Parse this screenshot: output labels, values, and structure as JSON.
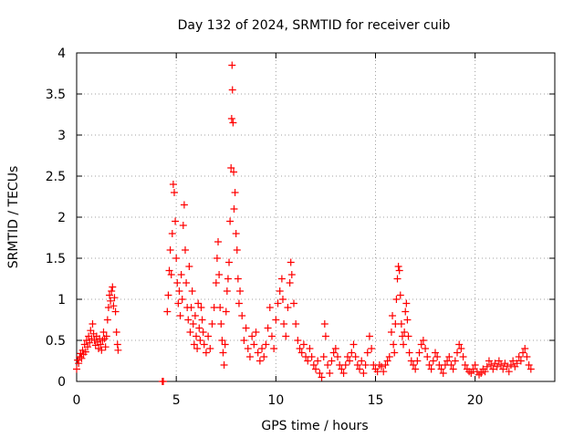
{
  "chart_data": {
    "type": "scatter",
    "title": "Day 132 of 2024, SRMTID for receiver cuib",
    "xlabel": "GPS time / hours",
    "ylabel": "SRMTID / TECUs",
    "xlim": [
      0,
      24
    ],
    "ylim": [
      0,
      4
    ],
    "xticks": [
      0,
      5,
      10,
      15,
      20
    ],
    "yticks": [
      0,
      0.5,
      1,
      1.5,
      2,
      2.5,
      3,
      3.5,
      4
    ],
    "xtick_labels": [
      "0",
      "5",
      "10",
      "15",
      "20"
    ],
    "ytick_labels": [
      "0",
      "0.5",
      "1",
      "1.5",
      "2",
      "2.5",
      "3",
      "3.5",
      "4"
    ],
    "grid": true,
    "marker": "plus",
    "series": [
      {
        "name": "SRMTID",
        "color": "#ff0000",
        "points": [
          [
            0.0,
            0.15
          ],
          [
            0.05,
            0.26
          ],
          [
            0.1,
            0.22
          ],
          [
            0.15,
            0.3
          ],
          [
            0.2,
            0.34
          ],
          [
            0.25,
            0.28
          ],
          [
            0.3,
            0.38
          ],
          [
            0.35,
            0.33
          ],
          [
            0.4,
            0.45
          ],
          [
            0.45,
            0.36
          ],
          [
            0.5,
            0.5
          ],
          [
            0.55,
            0.42
          ],
          [
            0.6,
            0.55
          ],
          [
            0.65,
            0.47
          ],
          [
            0.7,
            0.62
          ],
          [
            0.75,
            0.52
          ],
          [
            0.8,
            0.7
          ],
          [
            0.85,
            0.58
          ],
          [
            0.9,
            0.5
          ],
          [
            0.95,
            0.44
          ],
          [
            1.0,
            0.55
          ],
          [
            1.05,
            0.48
          ],
          [
            1.1,
            0.4
          ],
          [
            1.15,
            0.52
          ],
          [
            1.2,
            0.45
          ],
          [
            1.25,
            0.38
          ],
          [
            1.3,
            0.5
          ],
          [
            1.35,
            0.6
          ],
          [
            1.4,
            0.52
          ],
          [
            1.45,
            0.42
          ],
          [
            1.5,
            0.55
          ],
          [
            1.55,
            0.75
          ],
          [
            1.6,
            0.9
          ],
          [
            1.65,
            1.05
          ],
          [
            1.7,
            0.98
          ],
          [
            1.75,
            1.1
          ],
          [
            1.8,
            1.15
          ],
          [
            1.85,
            0.92
          ],
          [
            1.9,
            1.02
          ],
          [
            1.95,
            0.85
          ],
          [
            2.0,
            0.6
          ],
          [
            2.05,
            0.45
          ],
          [
            2.08,
            0.38
          ],
          [
            4.3,
            0.0
          ],
          [
            4.35,
            0.0
          ],
          [
            4.55,
            0.85
          ],
          [
            4.6,
            1.05
          ],
          [
            4.65,
            1.35
          ],
          [
            4.7,
            1.6
          ],
          [
            4.75,
            1.3
          ],
          [
            4.8,
            1.8
          ],
          [
            4.85,
            2.4
          ],
          [
            4.9,
            2.3
          ],
          [
            4.95,
            1.95
          ],
          [
            5.0,
            1.5
          ],
          [
            5.05,
            1.2
          ],
          [
            5.1,
            0.95
          ],
          [
            5.15,
            1.1
          ],
          [
            5.2,
            0.8
          ],
          [
            5.25,
            1.3
          ],
          [
            5.3,
            1.0
          ],
          [
            5.35,
            1.9
          ],
          [
            5.4,
            2.15
          ],
          [
            5.45,
            1.6
          ],
          [
            5.5,
            1.2
          ],
          [
            5.55,
            0.9
          ],
          [
            5.6,
            0.75
          ],
          [
            5.65,
            1.4
          ],
          [
            5.7,
            0.6
          ],
          [
            5.75,
            0.9
          ],
          [
            5.8,
            1.1
          ],
          [
            5.85,
            0.7
          ],
          [
            5.9,
            0.45
          ],
          [
            5.95,
            0.8
          ],
          [
            6.0,
            0.55
          ],
          [
            6.05,
            0.4
          ],
          [
            6.1,
            0.95
          ],
          [
            6.15,
            0.65
          ],
          [
            6.2,
            0.5
          ],
          [
            6.25,
            0.9
          ],
          [
            6.3,
            0.75
          ],
          [
            6.35,
            0.6
          ],
          [
            6.4,
            0.45
          ],
          [
            6.5,
            0.35
          ],
          [
            6.6,
            0.55
          ],
          [
            6.7,
            0.4
          ],
          [
            6.8,
            0.7
          ],
          [
            6.9,
            0.9
          ],
          [
            7.0,
            1.2
          ],
          [
            7.05,
            1.5
          ],
          [
            7.1,
            1.7
          ],
          [
            7.15,
            1.3
          ],
          [
            7.2,
            0.9
          ],
          [
            7.25,
            0.7
          ],
          [
            7.3,
            0.5
          ],
          [
            7.35,
            0.35
          ],
          [
            7.4,
            0.2
          ],
          [
            7.45,
            0.45
          ],
          [
            7.5,
            0.85
          ],
          [
            7.55,
            1.1
          ],
          [
            7.6,
            1.25
          ],
          [
            7.65,
            1.45
          ],
          [
            7.7,
            1.95
          ],
          [
            7.75,
            2.6
          ],
          [
            7.78,
            3.2
          ],
          [
            7.8,
            3.85
          ],
          [
            7.82,
            3.55
          ],
          [
            7.85,
            3.15
          ],
          [
            7.88,
            2.55
          ],
          [
            7.9,
            2.1
          ],
          [
            7.95,
            2.3
          ],
          [
            8.0,
            1.8
          ],
          [
            8.05,
            1.6
          ],
          [
            8.1,
            1.25
          ],
          [
            8.15,
            0.95
          ],
          [
            8.2,
            1.1
          ],
          [
            8.3,
            0.8
          ],
          [
            8.4,
            0.5
          ],
          [
            8.5,
            0.65
          ],
          [
            8.6,
            0.4
          ],
          [
            8.7,
            0.3
          ],
          [
            8.8,
            0.55
          ],
          [
            8.9,
            0.45
          ],
          [
            9.0,
            0.6
          ],
          [
            9.1,
            0.35
          ],
          [
            9.2,
            0.25
          ],
          [
            9.3,
            0.4
          ],
          [
            9.4,
            0.3
          ],
          [
            9.5,
            0.45
          ],
          [
            9.6,
            0.65
          ],
          [
            9.7,
            0.9
          ],
          [
            9.8,
            0.55
          ],
          [
            9.9,
            0.4
          ],
          [
            10.0,
            0.75
          ],
          [
            10.1,
            0.95
          ],
          [
            10.2,
            1.1
          ],
          [
            10.3,
            1.25
          ],
          [
            10.35,
            1.0
          ],
          [
            10.4,
            0.7
          ],
          [
            10.5,
            0.55
          ],
          [
            10.6,
            0.9
          ],
          [
            10.7,
            1.2
          ],
          [
            10.75,
            1.45
          ],
          [
            10.8,
            1.3
          ],
          [
            10.9,
            0.95
          ],
          [
            11.0,
            0.7
          ],
          [
            11.1,
            0.5
          ],
          [
            11.2,
            0.4
          ],
          [
            11.3,
            0.35
          ],
          [
            11.4,
            0.45
          ],
          [
            11.5,
            0.3
          ],
          [
            11.6,
            0.25
          ],
          [
            11.7,
            0.4
          ],
          [
            11.8,
            0.3
          ],
          [
            11.9,
            0.2
          ],
          [
            12.0,
            0.15
          ],
          [
            12.1,
            0.25
          ],
          [
            12.2,
            0.1
          ],
          [
            12.3,
            0.05
          ],
          [
            12.4,
            0.3
          ],
          [
            12.45,
            0.7
          ],
          [
            12.5,
            0.55
          ],
          [
            12.6,
            0.2
          ],
          [
            12.7,
            0.1
          ],
          [
            12.8,
            0.25
          ],
          [
            12.9,
            0.35
          ],
          [
            13.0,
            0.4
          ],
          [
            13.1,
            0.3
          ],
          [
            13.2,
            0.2
          ],
          [
            13.3,
            0.15
          ],
          [
            13.4,
            0.1
          ],
          [
            13.5,
            0.2
          ],
          [
            13.6,
            0.3
          ],
          [
            13.7,
            0.25
          ],
          [
            13.8,
            0.35
          ],
          [
            13.9,
            0.45
          ],
          [
            14.0,
            0.3
          ],
          [
            14.1,
            0.2
          ],
          [
            14.2,
            0.15
          ],
          [
            14.3,
            0.25
          ],
          [
            14.4,
            0.1
          ],
          [
            14.5,
            0.2
          ],
          [
            14.6,
            0.35
          ],
          [
            14.7,
            0.55
          ],
          [
            14.8,
            0.4
          ],
          [
            14.9,
            0.2
          ],
          [
            15.0,
            0.15
          ],
          [
            15.1,
            0.12
          ],
          [
            15.2,
            0.2
          ],
          [
            15.3,
            0.18
          ],
          [
            15.4,
            0.12
          ],
          [
            15.5,
            0.2
          ],
          [
            15.6,
            0.25
          ],
          [
            15.7,
            0.3
          ],
          [
            15.8,
            0.6
          ],
          [
            15.85,
            0.8
          ],
          [
            15.9,
            0.45
          ],
          [
            15.95,
            0.35
          ],
          [
            16.0,
            0.7
          ],
          [
            16.05,
            1.0
          ],
          [
            16.1,
            1.25
          ],
          [
            16.15,
            1.4
          ],
          [
            16.2,
            1.35
          ],
          [
            16.25,
            1.05
          ],
          [
            16.3,
            0.7
          ],
          [
            16.35,
            0.55
          ],
          [
            16.4,
            0.45
          ],
          [
            16.45,
            0.6
          ],
          [
            16.5,
            0.85
          ],
          [
            16.55,
            0.95
          ],
          [
            16.6,
            0.75
          ],
          [
            16.65,
            0.55
          ],
          [
            16.7,
            0.35
          ],
          [
            16.8,
            0.25
          ],
          [
            16.9,
            0.2
          ],
          [
            17.0,
            0.15
          ],
          [
            17.1,
            0.25
          ],
          [
            17.2,
            0.35
          ],
          [
            17.3,
            0.45
          ],
          [
            17.4,
            0.5
          ],
          [
            17.5,
            0.4
          ],
          [
            17.6,
            0.3
          ],
          [
            17.7,
            0.2
          ],
          [
            17.8,
            0.15
          ],
          [
            17.9,
            0.25
          ],
          [
            18.0,
            0.35
          ],
          [
            18.1,
            0.3
          ],
          [
            18.2,
            0.2
          ],
          [
            18.3,
            0.15
          ],
          [
            18.4,
            0.1
          ],
          [
            18.5,
            0.2
          ],
          [
            18.6,
            0.25
          ],
          [
            18.7,
            0.3
          ],
          [
            18.8,
            0.2
          ],
          [
            18.9,
            0.15
          ],
          [
            19.0,
            0.25
          ],
          [
            19.1,
            0.35
          ],
          [
            19.2,
            0.45
          ],
          [
            19.3,
            0.4
          ],
          [
            19.4,
            0.3
          ],
          [
            19.5,
            0.2
          ],
          [
            19.6,
            0.15
          ],
          [
            19.7,
            0.12
          ],
          [
            19.8,
            0.1
          ],
          [
            19.9,
            0.15
          ],
          [
            20.0,
            0.2
          ],
          [
            20.1,
            0.12
          ],
          [
            20.2,
            0.08
          ],
          [
            20.3,
            0.1
          ],
          [
            20.4,
            0.15
          ],
          [
            20.5,
            0.12
          ],
          [
            20.6,
            0.18
          ],
          [
            20.7,
            0.25
          ],
          [
            20.8,
            0.2
          ],
          [
            20.9,
            0.15
          ],
          [
            21.0,
            0.22
          ],
          [
            21.1,
            0.18
          ],
          [
            21.2,
            0.25
          ],
          [
            21.3,
            0.2
          ],
          [
            21.4,
            0.15
          ],
          [
            21.5,
            0.22
          ],
          [
            21.6,
            0.18
          ],
          [
            21.7,
            0.12
          ],
          [
            21.8,
            0.2
          ],
          [
            21.9,
            0.25
          ],
          [
            22.0,
            0.18
          ],
          [
            22.1,
            0.22
          ],
          [
            22.2,
            0.3
          ],
          [
            22.3,
            0.25
          ],
          [
            22.4,
            0.35
          ],
          [
            22.5,
            0.4
          ],
          [
            22.6,
            0.3
          ],
          [
            22.7,
            0.2
          ],
          [
            22.8,
            0.15
          ]
        ]
      }
    ]
  }
}
